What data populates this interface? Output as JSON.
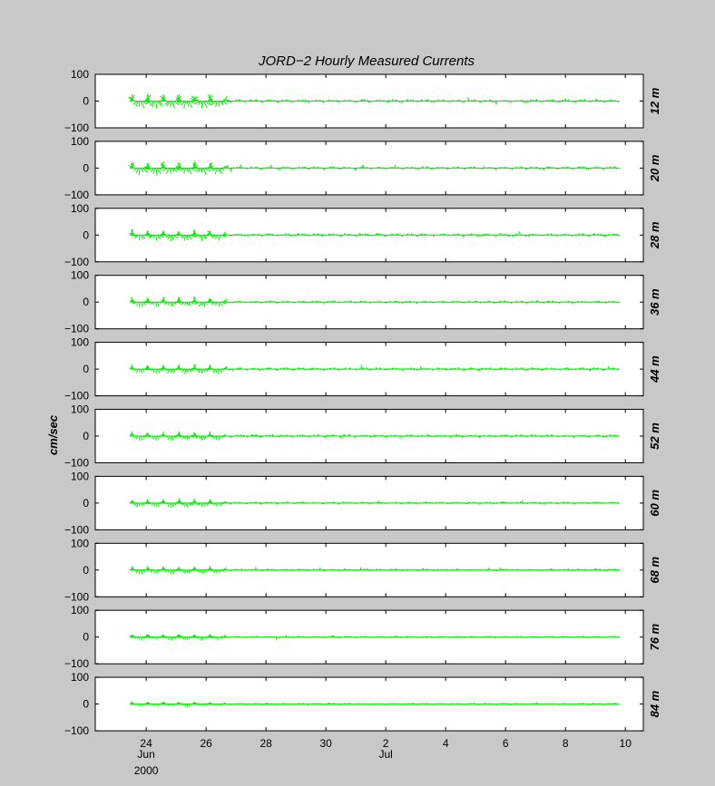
{
  "chart_data": {
    "type": "stick-vector",
    "title": "JORD−2  Hourly Measured Currents",
    "ylabel": "cm/sec",
    "ylim": [
      -100,
      100
    ],
    "yticks": [
      100,
      0,
      -100
    ],
    "ytick_labels": [
      "100",
      "0",
      "−100"
    ],
    "xlim_days": [
      22.3,
      40.6
    ],
    "data_start_day": 23.45,
    "data_end_day": 39.8,
    "xtick_days": [
      24,
      26,
      28,
      30,
      32,
      34,
      36,
      38,
      40
    ],
    "xtick_labels": [
      "24",
      "26",
      "28",
      "30",
      "2",
      "4",
      "6",
      "8",
      "10"
    ],
    "month_labels": [
      {
        "text": "Jun",
        "day": 24
      },
      {
        "text": "Jul",
        "day": 32
      }
    ],
    "year_label": "2000",
    "series_color": "#00ee00",
    "panels": [
      {
        "depth": "12 m",
        "early_amp": 24,
        "late_amp": 6
      },
      {
        "depth": "20 m",
        "early_amp": 22,
        "late_amp": 6
      },
      {
        "depth": "28 m",
        "early_amp": 18,
        "late_amp": 6
      },
      {
        "depth": "36 m",
        "early_amp": 16,
        "late_amp": 5
      },
      {
        "depth": "44 m",
        "early_amp": 15,
        "late_amp": 6
      },
      {
        "depth": "52 m",
        "early_amp": 14,
        "late_amp": 6
      },
      {
        "depth": "60 m",
        "early_amp": 14,
        "late_amp": 5
      },
      {
        "depth": "68 m",
        "early_amp": 13,
        "late_amp": 5
      },
      {
        "depth": "76 m",
        "early_amp": 10,
        "late_amp": 4
      },
      {
        "depth": "84 m",
        "early_amp": 8,
        "late_amp": 4
      }
    ]
  }
}
